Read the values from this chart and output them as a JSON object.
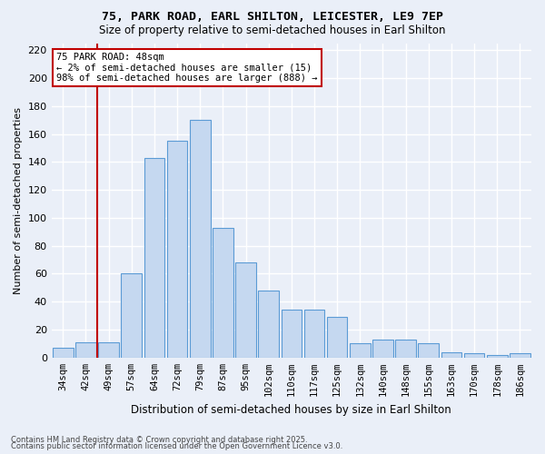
{
  "title1": "75, PARK ROAD, EARL SHILTON, LEICESTER, LE9 7EP",
  "title2": "Size of property relative to semi-detached houses in Earl Shilton",
  "xlabel": "Distribution of semi-detached houses by size in Earl Shilton",
  "ylabel": "Number of semi-detached properties",
  "categories": [
    "34sqm",
    "42sqm",
    "49sqm",
    "57sqm",
    "64sqm",
    "72sqm",
    "79sqm",
    "87sqm",
    "95sqm",
    "102sqm",
    "110sqm",
    "117sqm",
    "125sqm",
    "132sqm",
    "140sqm",
    "148sqm",
    "155sqm",
    "163sqm",
    "170sqm",
    "178sqm",
    "186sqm"
  ],
  "values": [
    7,
    11,
    11,
    60,
    143,
    155,
    170,
    93,
    68,
    48,
    34,
    34,
    29,
    10,
    13,
    13,
    10,
    4,
    3,
    2,
    3
  ],
  "bar_color": "#c5d8f0",
  "bar_edge_color": "#5b9bd5",
  "vline_color": "#c00000",
  "annotation_title": "75 PARK ROAD: 48sqm",
  "annotation_line1": "← 2% of semi-detached houses are smaller (15)",
  "annotation_line2": "98% of semi-detached houses are larger (888) →",
  "annotation_box_color": "#ffffff",
  "annotation_box_edge": "#c00000",
  "footer1": "Contains HM Land Registry data © Crown copyright and database right 2025.",
  "footer2": "Contains public sector information licensed under the Open Government Licence v3.0.",
  "bg_color": "#eaeff8",
  "plot_bg_color": "#eaeff8",
  "grid_color": "#ffffff",
  "ylim": [
    0,
    225
  ],
  "yticks": [
    0,
    20,
    40,
    60,
    80,
    100,
    120,
    140,
    160,
    180,
    200,
    220
  ]
}
